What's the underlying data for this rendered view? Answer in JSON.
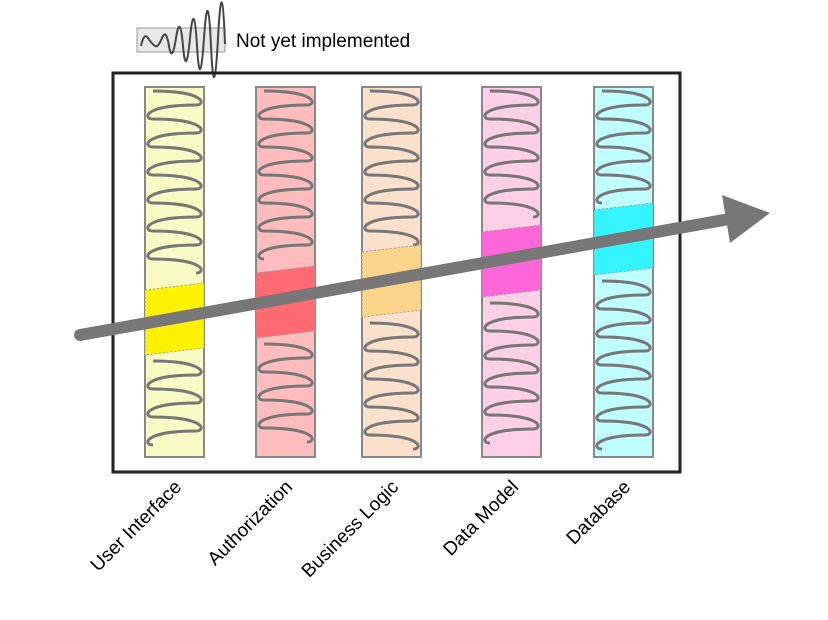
{
  "legend": {
    "label": "Not yet implemented",
    "icon": "spring-coil-icon"
  },
  "layers": [
    {
      "name": "User Interface",
      "bg": "#f8fcc4",
      "band": "#fff200"
    },
    {
      "name": "Authorization",
      "bg": "#ffbcbc",
      "band": "#ff6b73"
    },
    {
      "name": "Business Logic",
      "bg": "#fbe0cc",
      "band": "#fbd68a"
    },
    {
      "name": "Data Model",
      "bg": "#fdd0e8",
      "band": "#ff66d8"
    },
    {
      "name": "Database",
      "bg": "#bfffff",
      "band": "#33f4ff"
    }
  ],
  "colors": {
    "spring": "#777777",
    "arrow": "#777777",
    "frame": "#222222"
  }
}
